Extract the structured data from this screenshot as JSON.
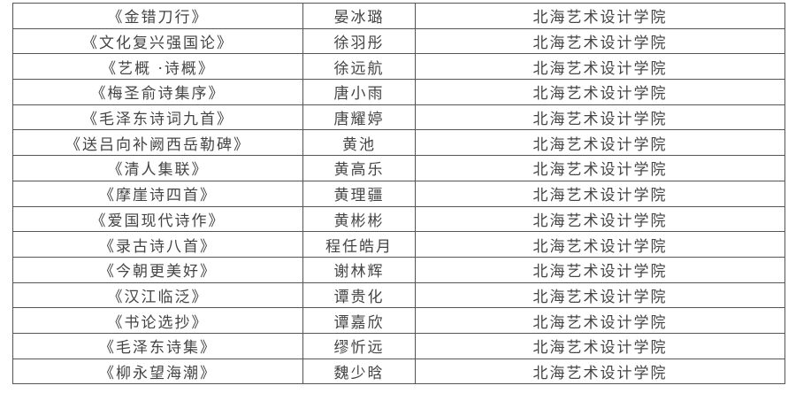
{
  "rows": [
    {
      "work": "《金错刀行》",
      "name": "晏冰璐",
      "school": "北海艺术设计学院"
    },
    {
      "work": "《文化复兴强国论》",
      "name": "徐羽彤",
      "school": "北海艺术设计学院"
    },
    {
      "work": "《艺概 ·诗概》",
      "name": "徐远航",
      "school": "北海艺术设计学院"
    },
    {
      "work": "《梅圣俞诗集序》",
      "name": "唐小雨",
      "school": "北海艺术设计学院"
    },
    {
      "work": "《毛泽东诗词九首》",
      "name": "唐耀婷",
      "school": "北海艺术设计学院"
    },
    {
      "work": "《送吕向补阙西岳勒碑》",
      "name": "黄池",
      "school": "北海艺术设计学院"
    },
    {
      "work": "《清人集联》",
      "name": "黄高乐",
      "school": "北海艺术设计学院"
    },
    {
      "work": "《摩崖诗四首》",
      "name": "黄理疆",
      "school": "北海艺术设计学院"
    },
    {
      "work": "《爱国现代诗作》",
      "name": "黄彬彬",
      "school": "北海艺术设计学院"
    },
    {
      "work": "《录古诗八首》",
      "name": "程任皓月",
      "school": "北海艺术设计学院"
    },
    {
      "work": "《今朝更美好》",
      "name": "谢林辉",
      "school": "北海艺术设计学院"
    },
    {
      "work": "《汉江临泛》",
      "name": "谭贵化",
      "school": "北海艺术设计学院"
    },
    {
      "work": "《书论选抄》",
      "name": "谭嘉欣",
      "school": "北海艺术设计学院"
    },
    {
      "work": "《毛泽东诗集》",
      "name": "缪忻远",
      "school": "北海艺术设计学院"
    },
    {
      "work": "《柳永望海潮》",
      "name": "魏少晗",
      "school": "北海艺术设计学院"
    }
  ]
}
